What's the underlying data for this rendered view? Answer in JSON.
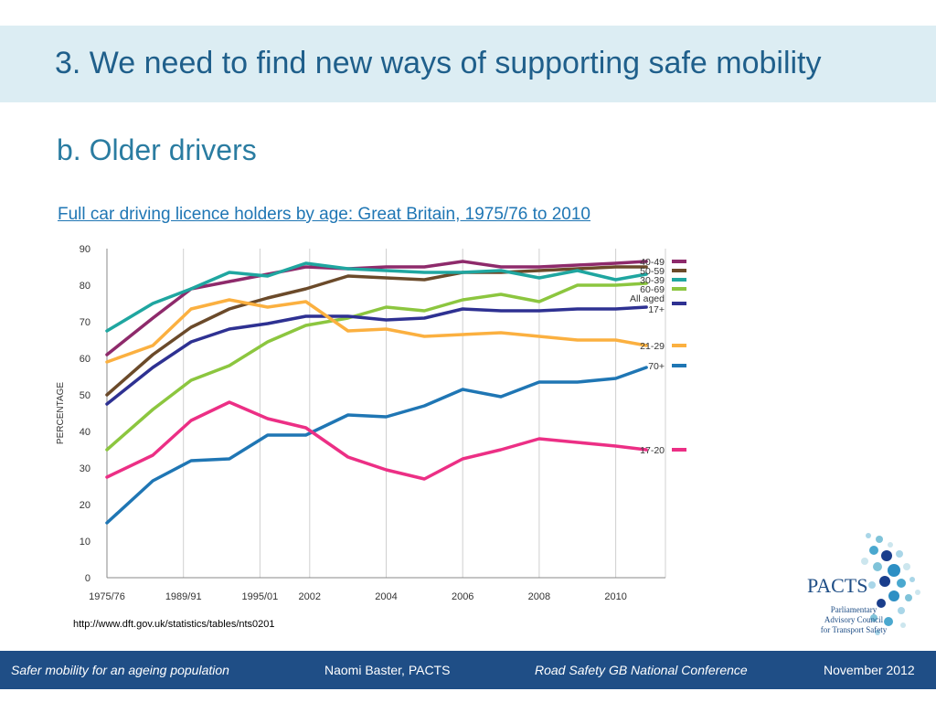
{
  "slide": {
    "title": "3. We need to find new ways of supporting safe mobility",
    "subtitle": "b. Older drivers",
    "chart_link": "Full car driving licence holders by age: Great Britain, 1975/76 to 2010",
    "source_url": "http://www.dft.gov.uk/statistics/tables/nts0201"
  },
  "logo": {
    "name": "PACTS",
    "line1": "Parliamentary",
    "line2": "Advisory Council",
    "line3": "for Transport Safety"
  },
  "footer": {
    "left": "Safer mobility for an ageing population",
    "center": "Naomi Baster, PACTS",
    "right_center": "Road Safety GB National Conference",
    "right": "November 2012"
  },
  "chart_data": {
    "type": "line",
    "title": "Full car driving licence holders by age: Great Britain, 1975/76 to 2010",
    "ylabel": "PERCENTAGE",
    "xlabel": "",
    "ylim": [
      0,
      90
    ],
    "yticks": [
      0,
      10,
      20,
      30,
      40,
      50,
      60,
      70,
      80,
      90
    ],
    "grid": "vertical",
    "legend": "right",
    "xticks": [
      {
        "label": "1975/76",
        "at": 0
      },
      {
        "label": "1989/91",
        "at": 2
      },
      {
        "label": "1995/01",
        "at": 4
      },
      {
        "label": "2002",
        "at": 5.3
      },
      {
        "label": "2004",
        "at": 7.3
      },
      {
        "label": "2006",
        "at": 9.3
      },
      {
        "label": "2008",
        "at": 11.3
      },
      {
        "label": "2010",
        "at": 13.3
      }
    ],
    "x": [
      0,
      1.2,
      2.2,
      3.2,
      4.2,
      5.2,
      6.3,
      7.3,
      8.3,
      9.3,
      10.3,
      11.3,
      12.3,
      13.3,
      14.1
    ],
    "series": [
      {
        "name": "40-49",
        "color": "#8e2a6b",
        "values": [
          61,
          71,
          79,
          81,
          83,
          85,
          84.5,
          85,
          85,
          86.5,
          85,
          85,
          85.5,
          86,
          86.5
        ]
      },
      {
        "name": "50-59",
        "color": "#6b4a2a",
        "values": [
          50,
          61,
          68.5,
          73.5,
          76.5,
          79,
          82.5,
          82,
          81.5,
          83.5,
          83.5,
          84,
          84.5,
          85,
          85
        ]
      },
      {
        "name": "30-39",
        "color": "#1fa6a0",
        "values": [
          67.5,
          75,
          79,
          83.5,
          82.5,
          86,
          84.5,
          84,
          83.5,
          83.5,
          84,
          82,
          84,
          81.5,
          83
        ]
      },
      {
        "name": "60-69",
        "color": "#8cc63f",
        "values": [
          35,
          46,
          54,
          58,
          64.5,
          69,
          71,
          74,
          73,
          76,
          77.5,
          75.5,
          80,
          80,
          80.5
        ]
      },
      {
        "name": "All aged 17+",
        "label_lines": [
          "All aged",
          "17+"
        ],
        "color": "#2e3192",
        "values": [
          47.5,
          57.5,
          64.5,
          68,
          69.5,
          71.5,
          71.5,
          70.5,
          71,
          73.5,
          73,
          73,
          73.5,
          73.5,
          74
        ]
      },
      {
        "name": "21-29",
        "color": "#fbb040",
        "values": [
          59,
          63.5,
          73.5,
          76,
          74,
          75.5,
          67.5,
          68,
          66,
          66.5,
          67,
          66,
          65,
          65,
          63.5
        ]
      },
      {
        "name": "70+",
        "color": "#1f76b4",
        "values": [
          15,
          26.5,
          32,
          32.5,
          39,
          39,
          44.5,
          44,
          47,
          51.5,
          49.5,
          53.5,
          53.5,
          54.5,
          57.5
        ]
      },
      {
        "name": "17-20",
        "color": "#ec2f85",
        "values": [
          27.5,
          33.5,
          43,
          48,
          43.5,
          41,
          33,
          29.5,
          27,
          32.5,
          35,
          38,
          37,
          36,
          35
        ]
      }
    ]
  }
}
